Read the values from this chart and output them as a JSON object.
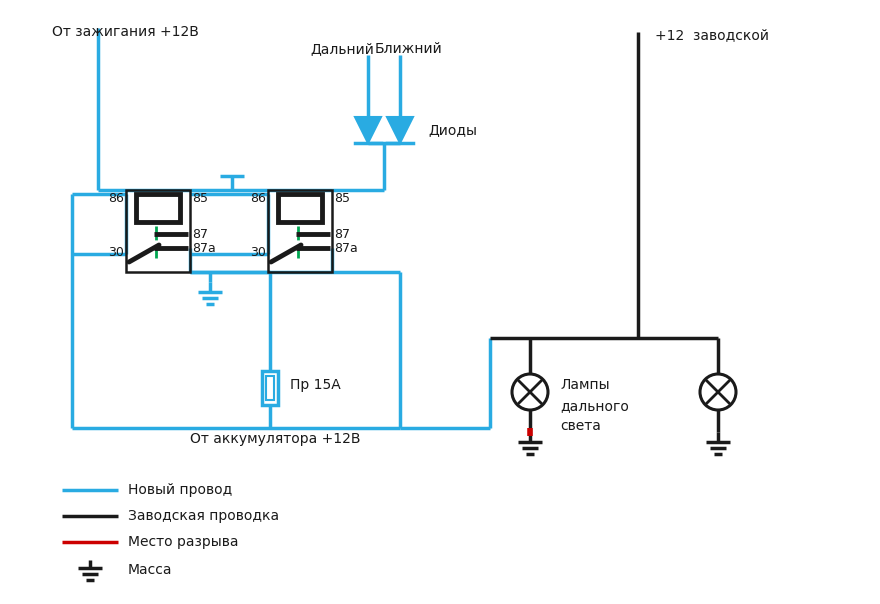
{
  "bg_color": "#ffffff",
  "cyan": "#29ABE2",
  "black": "#1a1a1a",
  "green": "#00A651",
  "red": "#CC0000",
  "legend_items": [
    {
      "color": "#29ABE2",
      "label": "Новый провод"
    },
    {
      "color": "#1a1a1a",
      "label": "Заводская проводка"
    },
    {
      "color": "#CC0000",
      "label": "Место разрыва"
    },
    {
      "color": "#1a1a1a",
      "label": "Масса"
    }
  ],
  "text_ignition": "От зажигания +12В",
  "text_dalny": "Дальний",
  "text_blizhny": "Ближний",
  "text_diody": "Диоды",
  "text_zavod": "+12  заводской",
  "text_fuse": "Пр 15А",
  "text_battery": "От аккумулятора +12В",
  "text_lampy": "Лампы\nдального\nсвета"
}
